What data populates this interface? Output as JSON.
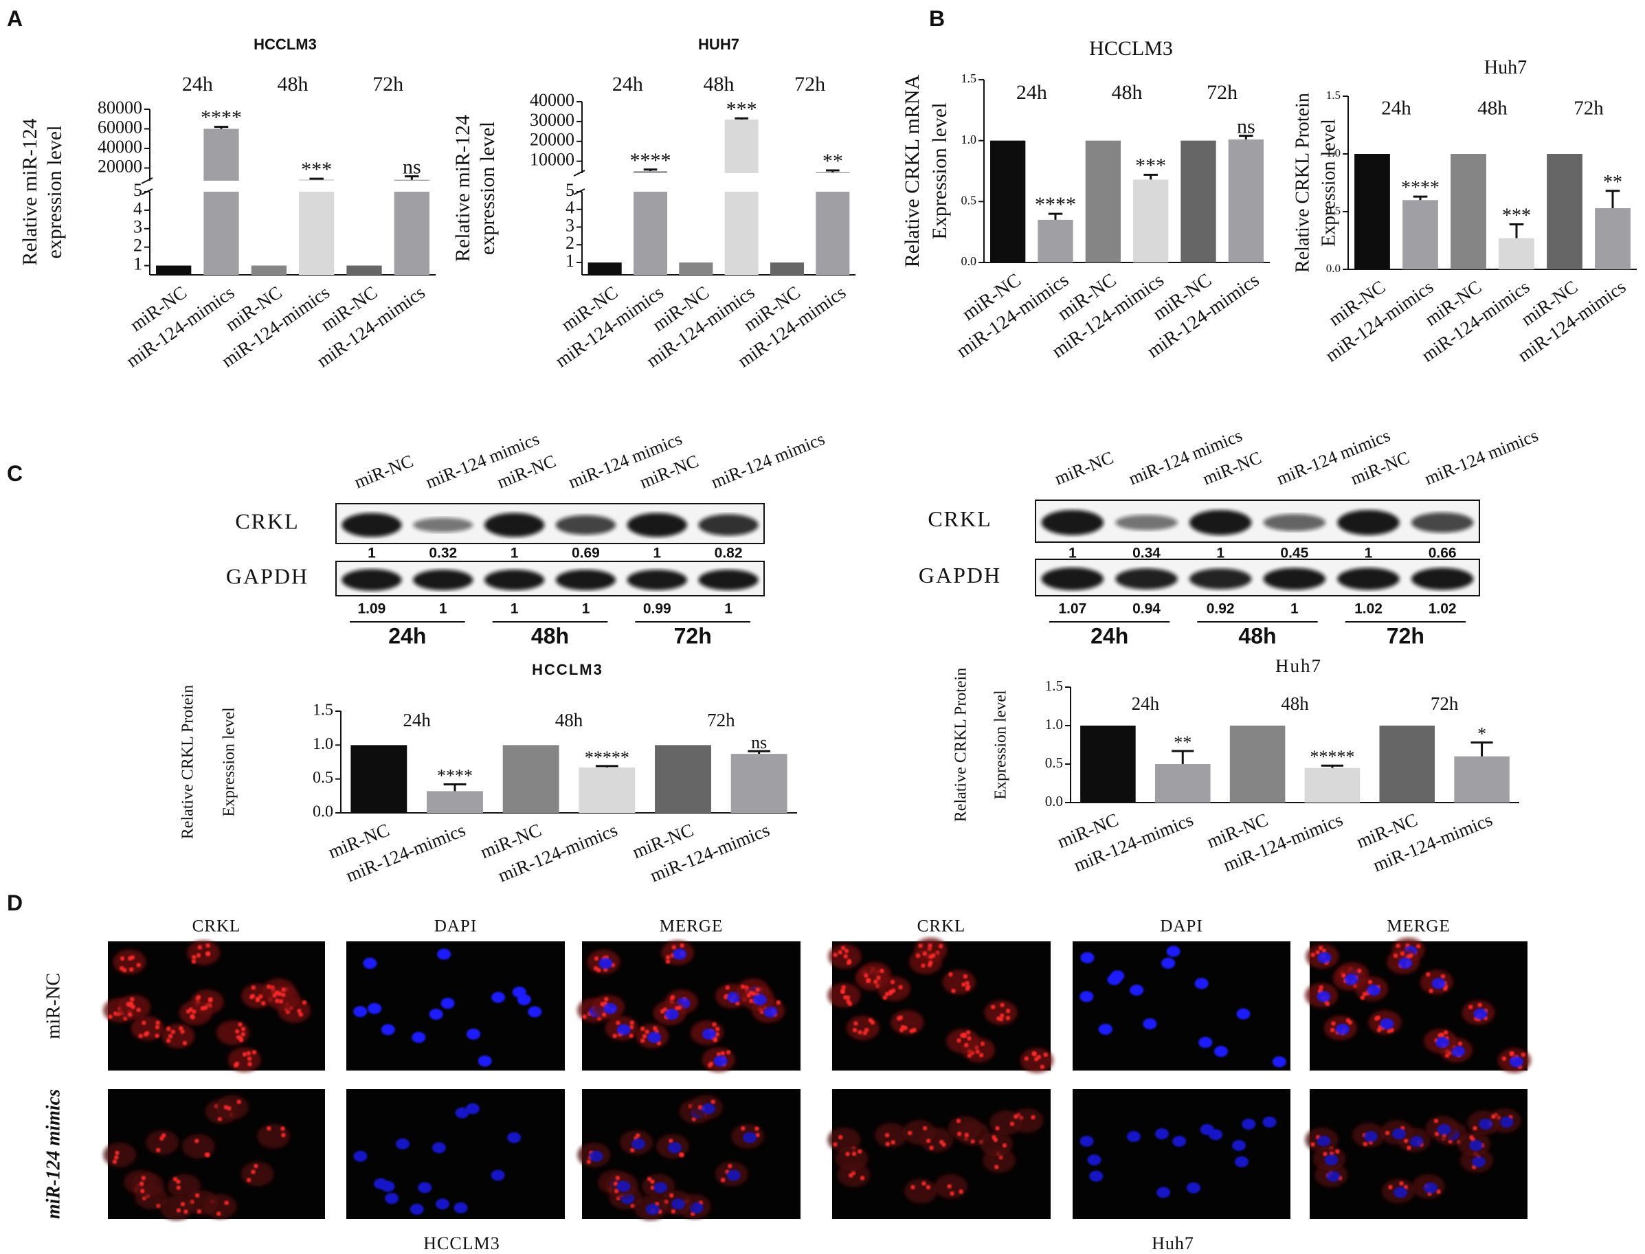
{
  "panel_labels": [
    "A",
    "B",
    "C",
    "D"
  ],
  "chart_data": [
    {
      "type": "bar",
      "title": "HCCLM3",
      "ylabel": [
        "Relative miR-124",
        "expression level"
      ],
      "groups": [
        "24h",
        "48h",
        "72h"
      ],
      "categories": [
        "miR-NC",
        "miR-124-mimics",
        "miR-NC",
        "miR-124-mimics",
        "miR-NC",
        "miR-124-mimics"
      ],
      "values": [
        1,
        60000,
        1,
        8500,
        1,
        8000
      ],
      "errors": [
        null,
        2000,
        null,
        500,
        null,
        3500
      ],
      "annotations": [
        null,
        "****",
        null,
        "***",
        null,
        "ns"
      ],
      "colors": [
        "#0d0d0d",
        "#a0a0a4",
        "#858585",
        "#d9d9d9",
        "#666666",
        "#a0a0a4"
      ],
      "axis_break": {
        "lower": {
          "ylim": [
            0.5,
            5
          ],
          "yticks": [
            1,
            2,
            3,
            4,
            5
          ]
        },
        "upper": {
          "ylim": [
            7000,
            80000
          ],
          "yticks": [
            20000,
            40000,
            60000,
            80000
          ]
        }
      }
    },
    {
      "type": "bar",
      "title": "HUH7",
      "ylabel": [
        "Relative miR-124",
        "expression level"
      ],
      "groups": [
        "24h",
        "48h",
        "72h"
      ],
      "categories": [
        "miR-NC",
        "miR-124-mimics",
        "miR-NC",
        "miR-124-mimics",
        "miR-NC",
        "miR-124-mimics"
      ],
      "values": [
        1,
        5000,
        1,
        31000,
        1,
        4500
      ],
      "errors": [
        null,
        800,
        null,
        600,
        null,
        900
      ],
      "annotations": [
        null,
        "****",
        null,
        "***",
        null,
        "**"
      ],
      "colors": [
        "#0d0d0d",
        "#a0a0a4",
        "#858585",
        "#d9d9d9",
        "#666666",
        "#a0a0a4"
      ],
      "axis_break": {
        "lower": {
          "ylim": [
            0.3,
            5
          ],
          "yticks": [
            1,
            2,
            3,
            4,
            5
          ]
        },
        "upper": {
          "ylim": [
            4000,
            40000
          ],
          "yticks": [
            10000,
            20000,
            30000,
            40000
          ]
        }
      }
    },
    {
      "type": "bar",
      "title": "HCCLM3",
      "ylabel": [
        "Relative CRKL mRNA",
        "Expression level"
      ],
      "groups": [
        "24h",
        "48h",
        "72h"
      ],
      "categories": [
        "miR-NC",
        "miR-124-mimics",
        "miR-NC",
        "miR-124-mimics",
        "miR-NC",
        "miR-124-mimics"
      ],
      "values": [
        1,
        0.35,
        1,
        0.68,
        1,
        1.01
      ],
      "errors": [
        null,
        0.05,
        null,
        0.04,
        null,
        0.03
      ],
      "annotations": [
        null,
        "****",
        null,
        "***",
        null,
        "ns"
      ],
      "colors": [
        "#0d0d0d",
        "#a0a0a4",
        "#858585",
        "#d9d9d9",
        "#666666",
        "#a0a0a4"
      ],
      "ylim": [
        0,
        1.5
      ],
      "yticks": [
        {
          "value": 0,
          "label": "0.0"
        },
        {
          "value": 0.5,
          "label": "0.5"
        },
        {
          "value": 1,
          "label": "1.0"
        },
        {
          "value": 1.5,
          "label": "1.5"
        }
      ]
    },
    {
      "type": "bar",
      "title": "Huh7",
      "ylabel": [
        "Relative CRKL Protein",
        "Expression level"
      ],
      "groups": [
        "24h",
        "48h",
        "72h"
      ],
      "categories": [
        "miR-NC",
        "miR-124-mimics",
        "miR-NC",
        "miR-124-mimics",
        "miR-NC",
        "miR-124-mimics"
      ],
      "values": [
        1,
        0.6,
        1,
        0.27,
        1,
        0.53
      ],
      "errors": [
        null,
        0.03,
        null,
        0.12,
        null,
        0.15
      ],
      "annotations": [
        null,
        "****",
        null,
        "***",
        null,
        "**"
      ],
      "colors": [
        "#0d0d0d",
        "#a0a0a4",
        "#858585",
        "#d9d9d9",
        "#666666",
        "#a0a0a4"
      ],
      "ylim": [
        0,
        1.5
      ],
      "yticks": [
        {
          "value": 0,
          "label": "0.0"
        },
        {
          "value": 0.5,
          "label": "0.5"
        },
        {
          "value": 1,
          "label": "1.0"
        },
        {
          "value": 1.5,
          "label": "1.5"
        }
      ]
    },
    {
      "type": "bar",
      "title": "HCCLM3",
      "ylabel": [
        "Relative CRKL Protein",
        "Expression level"
      ],
      "groups": [
        "24h",
        "48h",
        "72h"
      ],
      "categories": [
        "miR-NC",
        "miR-124-mimics",
        "miR-NC",
        "miR-124-mimics",
        "miR-NC",
        "miR-124-mimics"
      ],
      "values": [
        1,
        0.32,
        1,
        0.67,
        1,
        0.87
      ],
      "errors": [
        null,
        0.1,
        null,
        0.02,
        null,
        0.04
      ],
      "annotations": [
        null,
        "****",
        null,
        "*****",
        null,
        "ns"
      ],
      "colors": [
        "#0d0d0d",
        "#a0a0a4",
        "#858585",
        "#d9d9d9",
        "#666666",
        "#a0a0a4"
      ],
      "ylim": [
        0,
        1.5
      ],
      "yticks": [
        {
          "value": 0,
          "label": "0.0"
        },
        {
          "value": 0.5,
          "label": "0.5"
        },
        {
          "value": 1,
          "label": "1.0"
        },
        {
          "value": 1.5,
          "label": "1.5"
        }
      ]
    },
    {
      "type": "bar",
      "title": "Huh7",
      "ylabel": [
        "Relative CRKL Protein",
        "Expression level"
      ],
      "groups": [
        "24h",
        "48h",
        "72h"
      ],
      "categories": [
        "miR-NC",
        "miR-124-mimics",
        "miR-NC",
        "miR-124-mimics",
        "miR-NC",
        "miR-124-mimics"
      ],
      "values": [
        1,
        0.5,
        1,
        0.45,
        1,
        0.6
      ],
      "errors": [
        null,
        0.17,
        null,
        0.03,
        null,
        0.18
      ],
      "annotations": [
        null,
        "**",
        null,
        "*****",
        null,
        "*"
      ],
      "colors": [
        "#0d0d0d",
        "#a0a0a4",
        "#858585",
        "#d9d9d9",
        "#666666",
        "#a0a0a4"
      ],
      "ylim": [
        0,
        1.5
      ],
      "yticks": [
        {
          "value": 0,
          "label": "0.0"
        },
        {
          "value": 0.5,
          "label": "0.5"
        },
        {
          "value": 1,
          "label": "1.0"
        },
        {
          "value": 1.5,
          "label": "1.5"
        }
      ]
    }
  ],
  "blots": [
    {
      "lanes": [
        "miR-NC",
        "miR-124 mimics",
        "miR-NC",
        "miR-124 mimics",
        "miR-NC",
        "miR-124 mimics"
      ],
      "rows": [
        {
          "label": "CRKL",
          "values": [
            1,
            0.32,
            1,
            0.69,
            1,
            0.82
          ]
        },
        {
          "label": "GAPDH",
          "values": [
            1.09,
            1,
            1,
            1,
            0.99,
            1
          ]
        }
      ],
      "times": [
        "24h",
        "48h",
        "72h"
      ]
    },
    {
      "lanes": [
        "miR-NC",
        "miR-124 mimics",
        "miR-NC",
        "miR-124 mimics",
        "miR-NC",
        "miR-124 mimics"
      ],
      "rows": [
        {
          "label": "CRKL",
          "values": [
            1,
            0.34,
            1,
            0.45,
            1,
            0.66
          ]
        },
        {
          "label": "GAPDH",
          "values": [
            1.07,
            0.94,
            0.92,
            1,
            1.02,
            1.02
          ]
        }
      ],
      "times": [
        "24h",
        "48h",
        "72h"
      ]
    }
  ],
  "fluorescence": {
    "row_labels": [
      "miR-NC",
      "miR-124 mimics"
    ],
    "panels": [
      {
        "cell_line": "HCCLM3",
        "channels": [
          "CRKL",
          "DAPI",
          "MERGE"
        ]
      },
      {
        "cell_line": "Huh7",
        "channels": [
          "CRKL",
          "DAPI",
          "MERGE"
        ]
      }
    ]
  }
}
